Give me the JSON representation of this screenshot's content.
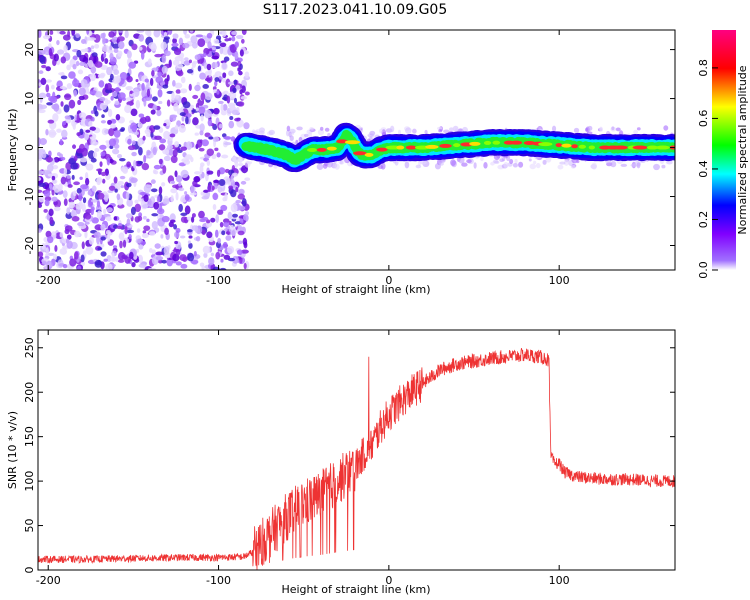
{
  "figure": {
    "title": "S117.2023.041.10.09.G05"
  },
  "chart_data": [
    {
      "type": "heatmap",
      "title": "S117.2023.041.10.09.G05",
      "xlabel": "Height of straight line (km)",
      "ylabel": "Frequency (Hz)",
      "xlim": [
        -206,
        168
      ],
      "ylim": [
        -25,
        24
      ],
      "xticks": [
        -200,
        -100,
        0,
        100
      ],
      "yticks": [
        -20,
        -10,
        0,
        10,
        20
      ],
      "colorbar": {
        "label": "Normalized spectral amplitude",
        "range": [
          0,
          0.95
        ],
        "ticks": [
          0.0,
          0.2,
          0.4,
          0.6,
          0.8
        ],
        "colormap": [
          "#ffffff",
          "#8000ff",
          "#0000ff",
          "#00ffff",
          "#00ff00",
          "#ffff00",
          "#ff0000",
          "#ff0080"
        ]
      },
      "noise_region_x": [
        -206,
        -83
      ],
      "signal_ridge": {
        "x": [
          -84,
          -78,
          -70,
          -60,
          -55,
          -50,
          -45,
          -40,
          -35,
          -30,
          -25,
          -22,
          -18,
          -15,
          -10,
          -5,
          0,
          5,
          10,
          20,
          40,
          60,
          80,
          100,
          120,
          140,
          168
        ],
        "y": [
          0.5,
          0,
          -0.5,
          -1.5,
          -2.5,
          -1.5,
          -0.5,
          -0.5,
          -0.3,
          0,
          2.5,
          1.5,
          -1,
          -1.5,
          -1.5,
          -0.5,
          0,
          0,
          0,
          0,
          0.5,
          1,
          1,
          0.5,
          0,
          0,
          0
        ]
      }
    },
    {
      "type": "line",
      "xlabel": "Height of straight line (km)",
      "ylabel": "SNR (10 * v/v)",
      "xlim": [
        -206,
        168
      ],
      "ylim": [
        0,
        270
      ],
      "xticks": [
        -200,
        -100,
        0,
        100
      ],
      "yticks": [
        0,
        50,
        100,
        150,
        200,
        250
      ],
      "line_color": "#ee3333",
      "series": [
        {
          "x": [
            -206,
            -180,
            -150,
            -120,
            -100,
            -85,
            -80,
            -75,
            -70,
            -60,
            -50,
            -40,
            -30,
            -20,
            -15,
            -10,
            -5,
            0,
            10,
            20,
            30,
            40,
            50,
            60,
            70,
            80,
            88,
            92,
            94,
            95,
            97,
            100,
            103,
            110,
            120,
            130,
            140,
            150,
            160,
            168
          ],
          "y": [
            12,
            12,
            13,
            14,
            14,
            15,
            20,
            30,
            40,
            60,
            75,
            85,
            100,
            115,
            130,
            140,
            160,
            175,
            195,
            210,
            225,
            232,
            235,
            238,
            240,
            242,
            240,
            238,
            235,
            130,
            120,
            120,
            110,
            105,
            103,
            102,
            102,
            101,
            100,
            100
          ]
        }
      ]
    }
  ]
}
